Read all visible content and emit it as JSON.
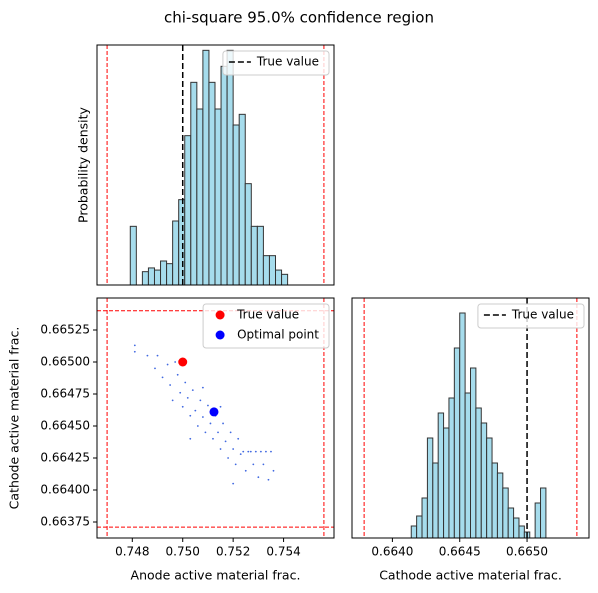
{
  "title": "chi-square 95.0% confidence region",
  "chart_data": [
    {
      "type": "histogram",
      "ylabel": "Probability density",
      "bins": [
        0.74792,
        0.74816,
        0.7484,
        0.74864,
        0.74888,
        0.74912,
        0.74936,
        0.7496,
        0.74984,
        0.75008,
        0.75032,
        0.75056,
        0.7508,
        0.75104,
        0.75128,
        0.75152,
        0.75176,
        0.752,
        0.75224,
        0.75248,
        0.75272,
        0.75296,
        0.7532,
        0.75344,
        0.75368,
        0.75392,
        0.75416
      ],
      "values": [
        110,
        0,
        25,
        32,
        28,
        45,
        40,
        120,
        160,
        280,
        380,
        330,
        440,
        380,
        330,
        410,
        440,
        300,
        320,
        190,
        110,
        110,
        55,
        55,
        28,
        20
      ],
      "color": "#a6dcec",
      "edgecolor": "#333333",
      "xlim": [
        0.7466,
        0.756
      ],
      "ylim": [
        0,
        450
      ],
      "xbounds": [
        0.747,
        0.7556
      ],
      "bounds_color": "#ff0000",
      "reference_lines": [
        {
          "name": "True value",
          "value": 0.75,
          "color": "#000000"
        }
      ],
      "legend": "upper right"
    },
    {
      "type": "scatter",
      "xlabel": "Anode active material frac.",
      "ylabel": "Cathode active material frac.",
      "series": [
        {
          "color": "#4169e1",
          "x": [
            0.7481,
            0.7481,
            0.7486,
            0.7489,
            0.749,
            0.7492,
            0.7494,
            0.7495,
            0.7496,
            0.7498,
            0.7499,
            0.75,
            0.7501,
            0.7502,
            0.7503,
            0.7504,
            0.7505,
            0.7506,
            0.7507,
            0.7508,
            0.7509,
            0.751,
            0.7511,
            0.7512,
            0.7513,
            0.7514,
            0.7515,
            0.7516,
            0.7517,
            0.7518,
            0.7519,
            0.752,
            0.7521,
            0.7522,
            0.7523,
            0.7524,
            0.7525,
            0.7526,
            0.7527,
            0.7528,
            0.7529,
            0.753,
            0.7531,
            0.7532,
            0.7533,
            0.7534,
            0.7535,
            0.7536,
            0.7497,
            0.7508,
            0.7515,
            0.7503,
            0.752
          ],
          "values": [
            0.66513,
            0.66508,
            0.66505,
            0.66495,
            0.66505,
            0.66488,
            0.66498,
            0.66482,
            0.6647,
            0.6649,
            0.66476,
            0.66465,
            0.66484,
            0.66472,
            0.66458,
            0.66478,
            0.66462,
            0.6645,
            0.6647,
            0.66457,
            0.66445,
            0.66466,
            0.66452,
            0.6644,
            0.66458,
            0.66445,
            0.66432,
            0.66452,
            0.66438,
            0.66425,
            0.66445,
            0.66432,
            0.6642,
            0.6644,
            0.66428,
            0.6643,
            0.66415,
            0.6643,
            0.6643,
            0.6642,
            0.6643,
            0.6641,
            0.6643,
            0.6642,
            0.6643,
            0.66408,
            0.6643,
            0.66415,
            0.665,
            0.6648,
            0.66465,
            0.6644,
            0.66405
          ]
        },
        {
          "name": "True value",
          "color": "#ff0000",
          "x": [
            0.75
          ],
          "values": [
            0.665
          ]
        },
        {
          "name": "Optimal point",
          "color": "#0000ff",
          "x": [
            0.75124
          ],
          "values": [
            0.66461
          ]
        }
      ],
      "xlim": [
        0.7466,
        0.756
      ],
      "ylim": [
        0.663625,
        0.6655
      ],
      "xticks": [
        0.748,
        {
          "value": 0.75,
          "label": "0.750"
        },
        0.752,
        0.754
      ],
      "yticks": [
        {
          "value": 0.66375,
          "label": "0.66375"
        },
        {
          "value": 0.664,
          "label": "0.66400"
        },
        0.66425,
        {
          "value": 0.6645,
          "label": "0.66450"
        },
        0.66475,
        {
          "value": 0.665,
          "label": "0.66500"
        },
        0.66525
      ],
      "xbounds": [
        0.747,
        0.7556
      ],
      "ybounds": [
        0.66371,
        0.6654
      ],
      "bounds_color": "#ff0000",
      "legend": "upper right"
    },
    {
      "type": "histogram",
      "xlabel": "Cathode active material frac.",
      "bins": [
        0.66414,
        0.66418,
        0.66422,
        0.66426,
        0.6643,
        0.66434,
        0.66438,
        0.66442,
        0.66446,
        0.6645,
        0.66454,
        0.66458,
        0.66462,
        0.66466,
        0.6647,
        0.66474,
        0.66478,
        0.66482,
        0.66486,
        0.6649,
        0.66494,
        0.66498,
        0.66502,
        0.66506,
        0.6651,
        0.66514
      ],
      "values": [
        144,
        264,
        480,
        1200,
        900,
        1500,
        1320,
        1680,
        2280,
        2700,
        1740,
        2040,
        1560,
        1380,
        1200,
        900,
        780,
        600,
        360,
        240,
        144,
        72,
        0,
        420,
        600
      ],
      "color": "#a6dcec",
      "edgecolor": "#333333",
      "xlim": [
        0.6637,
        0.66546
      ],
      "ylim": [
        0,
        2880
      ],
      "xticks": [
        {
          "value": 0.664,
          "label": "0.6640"
        },
        0.6645,
        {
          "value": 0.665,
          "label": "0.6650"
        }
      ],
      "xbounds": [
        0.66379,
        0.66537
      ],
      "bounds_color": "#ff0000",
      "reference_lines": [
        {
          "name": "True value",
          "value": 0.665,
          "color": "#000000"
        }
      ],
      "legend": "upper right"
    }
  ]
}
